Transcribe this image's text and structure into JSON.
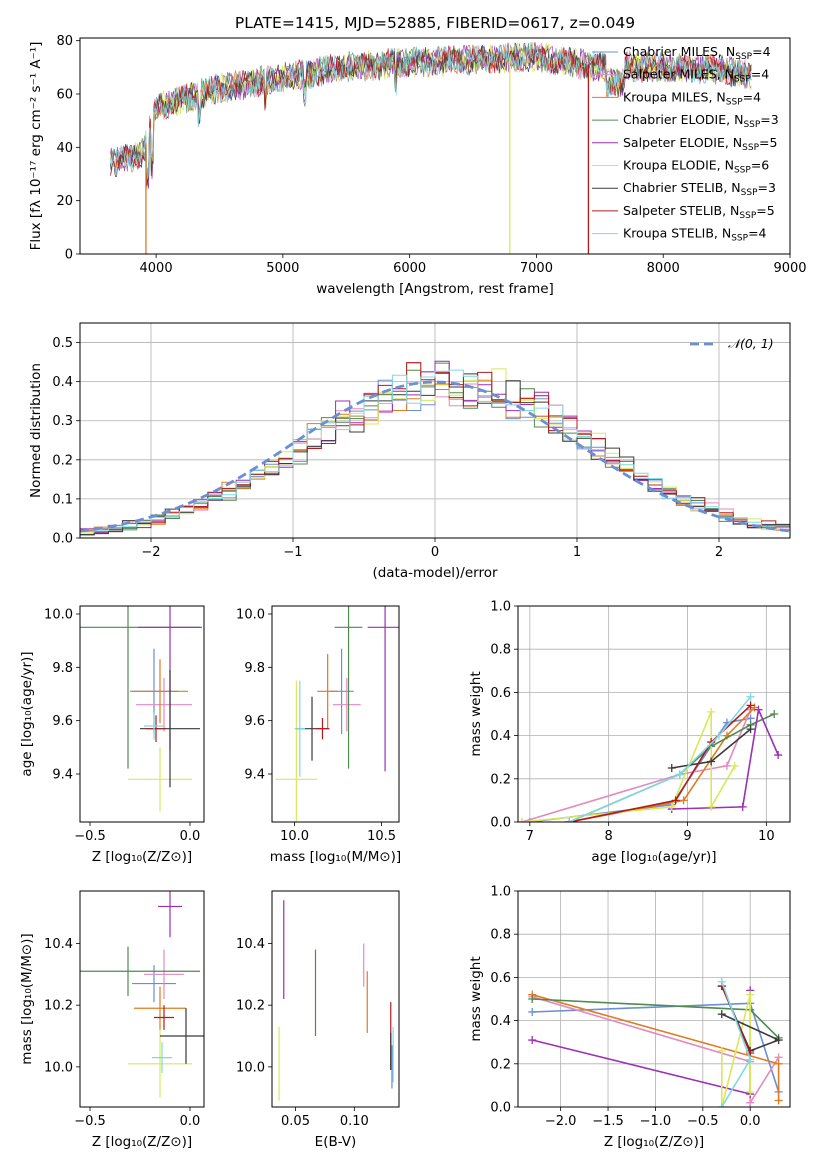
{
  "figure": {
    "title": "PLATE=1415, MJD=52885, FIBERID=0617, z=0.049"
  },
  "legend": {
    "spectrum_entries": [
      {
        "label": "Chabrier MILES, N",
        "sub": "SSP",
        "tail": "=4",
        "color": "#6b8fd6"
      },
      {
        "label": "Salpeter MILES, N",
        "sub": "SSP",
        "tail": "=4",
        "color": "#e48ac1"
      },
      {
        "label": "Kroupa MILES, N",
        "sub": "SSP",
        "tail": "=4",
        "color": "#e07b1f"
      },
      {
        "label": "Chabrier ELODIE, N",
        "sub": "SSP",
        "tail": "=3",
        "color": "#4f8a4f"
      },
      {
        "label": "Salpeter ELODIE, N",
        "sub": "SSP",
        "tail": "=5",
        "color": "#9c2fb5"
      },
      {
        "label": "Kroupa ELODIE, N",
        "sub": "SSP",
        "tail": "=6",
        "color": "#d8e85a"
      },
      {
        "label": "Chabrier STELIB, N",
        "sub": "SSP",
        "tail": "=3",
        "color": "#3a3a3a"
      },
      {
        "label": "Salpeter STELIB, N",
        "sub": "SSP",
        "tail": "=5",
        "color": "#b31b1b"
      },
      {
        "label": "Kroupa STELIB, N",
        "sub": "SSP",
        "tail": "=4",
        "color": "#7fd8e6"
      }
    ],
    "residual_entry": "𝒩(0, 1)"
  },
  "chart_data": [
    {
      "id": "spectrum",
      "type": "line",
      "xlabel": "wavelength [Angstrom, rest frame]",
      "ylabel": "Flux [fλ 10⁻¹⁷ erg cm⁻² s⁻¹ A⁻¹]",
      "xlim": [
        3400,
        9000
      ],
      "ylim": [
        0,
        81
      ],
      "xticks": [
        "4000",
        "5000",
        "6000",
        "7000",
        "8000",
        "9000"
      ],
      "yticks": [
        "0",
        "20",
        "40",
        "60",
        "80"
      ],
      "series_source": "legend.spectrum_entries",
      "continuum_x": [
        3640,
        3900,
        4000,
        4200,
        4500,
        5000,
        5500,
        6000,
        6500,
        7000,
        7500,
        8000,
        8500,
        8700
      ],
      "continuum_y": [
        34,
        38,
        55,
        58,
        62,
        66,
        70,
        72,
        73,
        74,
        70,
        70,
        69,
        67
      ],
      "spikes": [
        {
          "x": 3920,
          "y": 0,
          "color": "#e07b1f"
        },
        {
          "x": 6790,
          "y": 0,
          "color": "#d8e85a"
        },
        {
          "x": 7410,
          "y": 0,
          "color": "#b31b1b"
        }
      ],
      "grid": false
    },
    {
      "id": "residuals",
      "type": "step",
      "xlabel": "(data-model)/error",
      "ylabel": "Normed distribution",
      "xlim": [
        -2.5,
        2.5
      ],
      "ylim": [
        0,
        0.55
      ],
      "xticks": [
        "−2",
        "−1",
        "0",
        "1",
        "2"
      ],
      "yticks": [
        "0.0",
        "0.1",
        "0.2",
        "0.3",
        "0.4",
        "0.5"
      ],
      "bin_width": 0.1,
      "series_source": "legend.spectrum_entries",
      "gaussian": {
        "mean": 0,
        "sigma": 1,
        "color": "#6b8fd6"
      },
      "grid": true
    },
    {
      "id": "age-vs-Z",
      "type": "scatter",
      "xlabel": "Z [log₁₀(Z/Z⊙)]",
      "ylabel": "age  [log₁₀(age/yr)]",
      "xlim": [
        -0.55,
        0.07
      ],
      "ylim": [
        9.22,
        10.03
      ],
      "xticks": [
        "−0.5",
        "0.0"
      ],
      "yticks": [
        "9.4",
        "9.6",
        "9.8",
        "10.0"
      ],
      "points": [
        {
          "x": -0.18,
          "y": 9.71,
          "xerr": 0.12,
          "yerr": 0.16,
          "color": "#6b8fd6"
        },
        {
          "x": -0.13,
          "y": 9.66,
          "xerr": 0.14,
          "yerr": 0.1,
          "color": "#e48ac1"
        },
        {
          "x": -0.15,
          "y": 9.71,
          "xerr": 0.14,
          "yerr": 0.12,
          "color": "#e07b1f"
        },
        {
          "x": -0.31,
          "y": 9.95,
          "xerr": 0.36,
          "yerr": 0.53,
          "color": "#4f8a4f"
        },
        {
          "x": -0.1,
          "y": 9.95,
          "xerr": 0.16,
          "yerr": 0.46,
          "color": "#9c2fb5"
        },
        {
          "x": -0.15,
          "y": 9.38,
          "xerr": 0.16,
          "yerr": 0.12,
          "color": "#d8e85a"
        },
        {
          "x": -0.1,
          "y": 9.57,
          "xerr": 0.15,
          "yerr": 0.22,
          "color": "#3a3a3a"
        },
        {
          "x": -0.17,
          "y": 9.57,
          "xerr": 0.05,
          "yerr": 0.05,
          "color": "#b31b1b"
        },
        {
          "x": -0.18,
          "y": 9.58,
          "xerr": 0.05,
          "yerr": 0.05,
          "color": "#7fd8e6"
        }
      ],
      "grid": false
    },
    {
      "id": "age-vs-mass",
      "type": "scatter",
      "xlabel": "mass [log₁₀(M/M⊙)]",
      "ylabel": "",
      "xlim": [
        9.87,
        10.6
      ],
      "ylim": [
        9.22,
        10.03
      ],
      "xticks": [
        "10.0",
        "10.5"
      ],
      "yticks": [
        "9.4",
        "9.6",
        "9.8",
        "10.0"
      ],
      "points": [
        {
          "x": 10.27,
          "y": 9.71,
          "xerr": 0.07,
          "yerr": 0.16,
          "color": "#6b8fd6"
        },
        {
          "x": 10.3,
          "y": 9.66,
          "xerr": 0.08,
          "yerr": 0.1,
          "color": "#e48ac1"
        },
        {
          "x": 10.19,
          "y": 9.71,
          "xerr": 0.06,
          "yerr": 0.14,
          "color": "#e07b1f"
        },
        {
          "x": 10.31,
          "y": 9.95,
          "xerr": 0.08,
          "yerr": 0.53,
          "color": "#4f8a4f"
        },
        {
          "x": 10.52,
          "y": 9.95,
          "xerr": 0.1,
          "yerr": 0.54,
          "color": "#9c2fb5"
        },
        {
          "x": 10.01,
          "y": 9.38,
          "xerr": 0.12,
          "yerr": 0.37,
          "color": "#d8e85a"
        },
        {
          "x": 10.1,
          "y": 9.57,
          "xerr": 0.09,
          "yerr": 0.12,
          "color": "#3a3a3a"
        },
        {
          "x": 10.16,
          "y": 9.57,
          "xerr": 0.04,
          "yerr": 0.04,
          "color": "#b31b1b"
        },
        {
          "x": 10.03,
          "y": 9.57,
          "xerr": 0.03,
          "yerr": 0.18,
          "color": "#7fd8e6"
        }
      ],
      "grid": false
    },
    {
      "id": "mass-weight-vs-age",
      "type": "line",
      "xlabel": "age  [log₁₀(age/yr)]",
      "ylabel": "mass weight",
      "xlim": [
        6.85,
        10.3
      ],
      "ylim": [
        0,
        1
      ],
      "xticks": [
        "7",
        "8",
        "9",
        "10"
      ],
      "yticks": [
        "0.0",
        "0.2",
        "0.4",
        "0.6",
        "0.8",
        "1.0"
      ],
      "series": [
        {
          "color": "#6b8fd6",
          "points": [
            [
              7.0,
              0.0
            ],
            [
              8.8,
              0.08
            ],
            [
              9.5,
              0.46
            ],
            [
              9.8,
              0.48
            ]
          ]
        },
        {
          "color": "#e48ac1",
          "points": [
            [
              6.9,
              0.0
            ],
            [
              8.9,
              0.22
            ],
            [
              9.5,
              0.26
            ],
            [
              9.8,
              0.52
            ]
          ]
        },
        {
          "color": "#e07b1f",
          "points": [
            [
              7.5,
              0.0
            ],
            [
              8.95,
              0.1
            ],
            [
              9.5,
              0.4
            ],
            [
              9.85,
              0.53
            ]
          ]
        },
        {
          "color": "#4f8a4f",
          "points": [
            [
              7.5,
              0.0
            ],
            [
              8.9,
              0.22
            ],
            [
              9.3,
              0.35
            ],
            [
              9.8,
              0.45
            ],
            [
              10.1,
              0.5
            ]
          ]
        },
        {
          "color": "#9c2fb5",
          "points": [
            [
              8.8,
              0.06
            ],
            [
              9.7,
              0.07
            ],
            [
              9.9,
              0.52
            ],
            [
              10.15,
              0.31
            ]
          ]
        },
        {
          "color": "#d8e85a",
          "points": [
            [
              6.9,
              0.0
            ],
            [
              8.8,
              0.07
            ],
            [
              9.3,
              0.51
            ],
            [
              9.3,
              0.07
            ],
            [
              9.6,
              0.26
            ]
          ]
        },
        {
          "color": "#3a3a3a",
          "points": [
            [
              8.8,
              0.25
            ],
            [
              9.3,
              0.28
            ],
            [
              9.8,
              0.43
            ]
          ]
        },
        {
          "color": "#b31b1b",
          "points": [
            [
              7.5,
              0.0
            ],
            [
              8.85,
              0.1
            ],
            [
              9.3,
              0.37
            ],
            [
              9.8,
              0.54
            ]
          ]
        },
        {
          "color": "#7fd8e6",
          "points": [
            [
              7.5,
              0.0
            ],
            [
              8.9,
              0.22
            ],
            [
              9.4,
              0.4
            ],
            [
              9.8,
              0.58
            ]
          ]
        }
      ],
      "grid": true
    },
    {
      "id": "mass-vs-Z",
      "type": "scatter",
      "xlabel": "Z [log₁₀(Z/Z⊙)]",
      "ylabel": "mass [log₁₀(M/M⊙)]",
      "xlim": [
        -0.55,
        0.07
      ],
      "ylim": [
        9.87,
        10.57
      ],
      "xticks": [
        "−0.5",
        "0.0"
      ],
      "yticks": [
        "10.0",
        "10.2",
        "10.4"
      ],
      "points": [
        {
          "x": -0.18,
          "y": 10.27,
          "xerr": 0.11,
          "yerr": 0.06,
          "color": "#6b8fd6"
        },
        {
          "x": -0.13,
          "y": 10.3,
          "xerr": 0.1,
          "yerr": 0.08,
          "color": "#e48ac1"
        },
        {
          "x": -0.15,
          "y": 10.19,
          "xerr": 0.13,
          "yerr": 0.07,
          "color": "#e07b1f"
        },
        {
          "x": -0.31,
          "y": 10.31,
          "xerr": 0.36,
          "yerr": 0.08,
          "color": "#4f8a4f"
        },
        {
          "x": -0.1,
          "y": 10.52,
          "xerr": 0.06,
          "yerr": 0.1,
          "color": "#9c2fb5"
        },
        {
          "x": -0.15,
          "y": 10.01,
          "xerr": 0.16,
          "yerr": 0.11,
          "color": "#d8e85a"
        },
        {
          "x": -0.02,
          "y": 10.1,
          "xerr": 0.13,
          "yerr": 0.09,
          "color": "#3a3a3a"
        },
        {
          "x": -0.13,
          "y": 10.16,
          "xerr": 0.05,
          "yerr": 0.04,
          "color": "#b31b1b"
        },
        {
          "x": -0.14,
          "y": 10.03,
          "xerr": 0.05,
          "yerr": 0.05,
          "color": "#7fd8e6"
        }
      ],
      "grid": false
    },
    {
      "id": "mass-vs-ebv",
      "type": "scatter",
      "xlabel": "E(B-V)",
      "ylabel": "",
      "xlim": [
        0.03,
        0.138
      ],
      "ylim": [
        9.87,
        10.57
      ],
      "xticks": [
        "0.05",
        "0.10"
      ],
      "yticks": [
        "10.0",
        "10.2",
        "10.4"
      ],
      "points": [
        {
          "x": 0.04,
          "y": 10.38,
          "yerr": 0.16,
          "color": "#9c2fb5"
        },
        {
          "x": 0.036,
          "y": 10.01,
          "yerr": 0.12,
          "color": "#d8e85a"
        },
        {
          "x": 0.067,
          "y": 10.24,
          "yerr": 0.14,
          "color": "#4f8a4f"
        },
        {
          "x": 0.108,
          "y": 10.33,
          "yerr": 0.07,
          "color": "#e48ac1"
        },
        {
          "x": 0.111,
          "y": 10.21,
          "yerr": 0.1,
          "color": "#e07b1f"
        },
        {
          "x": 0.131,
          "y": 10.1,
          "yerr": 0.11,
          "color": "#b31b1b"
        },
        {
          "x": 0.131,
          "y": 10.05,
          "yerr": 0.06,
          "color": "#3a3a3a"
        },
        {
          "x": 0.133,
          "y": 10.04,
          "yerr": 0.09,
          "color": "#7fd8e6"
        },
        {
          "x": 0.132,
          "y": 10.0,
          "yerr": 0.07,
          "color": "#6b8fd6"
        }
      ],
      "grid": false
    },
    {
      "id": "mass-weight-vs-Z",
      "type": "line",
      "xlabel": "Z [log₁₀(Z/Z⊙)]",
      "ylabel": "mass weight",
      "xlim": [
        -2.45,
        0.42
      ],
      "ylim": [
        0,
        1
      ],
      "xticks": [
        "−2.0",
        "−1.5",
        "−1.0",
        "−0.5",
        "0.0"
      ],
      "yticks": [
        "0.0",
        "0.2",
        "0.4",
        "0.6",
        "0.8",
        "1.0"
      ],
      "series": [
        {
          "color": "#6b8fd6",
          "points": [
            [
              -2.3,
              0.44
            ],
            [
              0.0,
              0.48
            ],
            [
              0.3,
              0.07
            ]
          ]
        },
        {
          "color": "#e48ac1",
          "points": [
            [
              -2.3,
              0.51
            ],
            [
              0.0,
              0.21
            ],
            [
              0.0,
              0.02
            ],
            [
              0.3,
              0.23
            ]
          ]
        },
        {
          "color": "#e07b1f",
          "points": [
            [
              -2.3,
              0.52
            ],
            [
              0.3,
              0.2
            ],
            [
              0.3,
              0.03
            ]
          ]
        },
        {
          "color": "#4f8a4f",
          "points": [
            [
              -2.3,
              0.5
            ],
            [
              0.0,
              0.45
            ],
            [
              0.3,
              0.32
            ]
          ]
        },
        {
          "color": "#9c2fb5",
          "points": [
            [
              -2.3,
              0.31
            ],
            [
              0.0,
              0.06
            ],
            [
              0.0,
              0.54
            ]
          ]
        },
        {
          "color": "#d8e85a",
          "points": [
            [
              -0.3,
              0.26
            ],
            [
              -0.3,
              0.0
            ],
            [
              0.0,
              0.52
            ],
            [
              0.0,
              0.07
            ]
          ]
        },
        {
          "color": "#3a3a3a",
          "points": [
            [
              -0.3,
              0.56
            ],
            [
              0.0,
              0.26
            ],
            [
              0.3,
              0.31
            ],
            [
              -0.3,
              0.43
            ]
          ]
        },
        {
          "color": "#b31b1b",
          "points": [
            [
              -0.3,
              0.56
            ],
            [
              0.0,
              0.25
            ]
          ]
        },
        {
          "color": "#7fd8e6",
          "points": [
            [
              -0.3,
              0.58
            ],
            [
              0.0,
              0.22
            ],
            [
              -0.3,
              0.0
            ]
          ]
        }
      ],
      "grid": true
    }
  ]
}
